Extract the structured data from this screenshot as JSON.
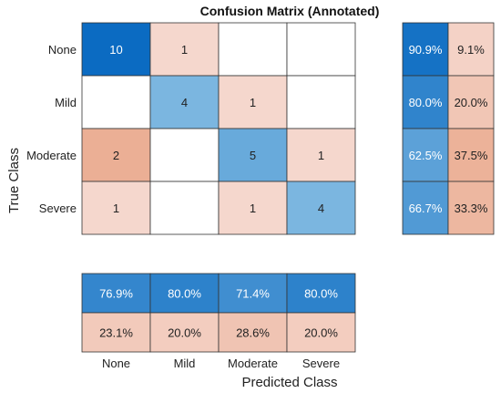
{
  "chart_data": {
    "type": "heatmap",
    "title": "Confusion Matrix (Annotated)",
    "xlabel": "Predicted Class",
    "ylabel": "True Class",
    "classes": [
      "None",
      "Mild",
      "Moderate",
      "Severe"
    ],
    "matrix": [
      [
        10,
        1,
        0,
        0
      ],
      [
        0,
        4,
        1,
        0
      ],
      [
        2,
        0,
        5,
        1
      ],
      [
        1,
        0,
        1,
        4
      ]
    ],
    "row_summary": {
      "correct": [
        "90.9%",
        "80.0%",
        "62.5%",
        "66.7%"
      ],
      "incorrect": [
        "9.1%",
        "20.0%",
        "37.5%",
        "33.3%"
      ]
    },
    "column_summary": {
      "correct": [
        "76.9%",
        "80.0%",
        "71.4%",
        "80.0%"
      ],
      "incorrect": [
        "23.1%",
        "20.0%",
        "28.6%",
        "20.0%"
      ]
    },
    "colors": {
      "diagonal_max": "#0B6BC2",
      "diagonal_light": "#7BB6E0",
      "offdiag_light": "#F5D7CD",
      "offdiag_dark": "#EBAF95",
      "empty": "#FFFFFF",
      "grid": "#333333"
    }
  }
}
